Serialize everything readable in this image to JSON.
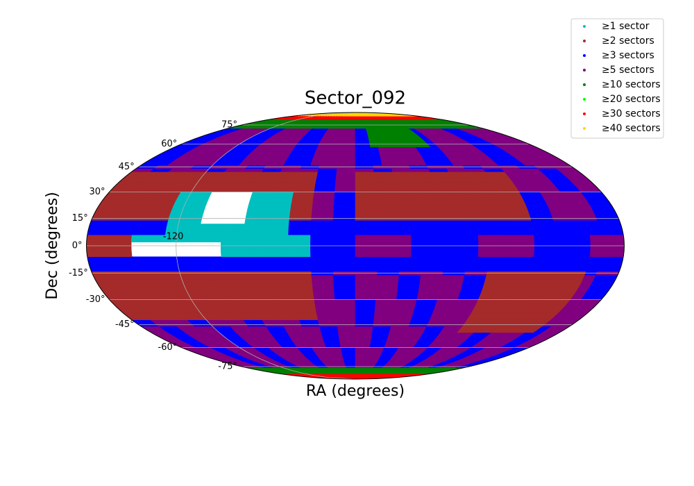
{
  "chart_data": {
    "type": "mollweide",
    "title": "Sector_092",
    "xlabel": "RA (degrees)",
    "ylabel": "Dec (degrees)",
    "xticks": [
      -120
    ],
    "yticks": [
      {
        "value": 75,
        "label": "75°"
      },
      {
        "value": 60,
        "label": "60°"
      },
      {
        "value": 45,
        "label": "45°"
      },
      {
        "value": 30,
        "label": "30°"
      },
      {
        "value": 15,
        "label": "15°"
      },
      {
        "value": 0,
        "label": "0°"
      },
      {
        "value": -15,
        "label": "-15°"
      },
      {
        "value": -30,
        "label": "-30°"
      },
      {
        "value": -45,
        "label": "-45°"
      },
      {
        "value": -60,
        "label": "-60°"
      },
      {
        "value": -75,
        "label": "-75°"
      }
    ],
    "grid": true,
    "legend": "upper right",
    "series": [
      {
        "name": "≥1 sector",
        "color": "#00bfbf"
      },
      {
        "name": "≥2 sectors",
        "color": "#a52a2a"
      },
      {
        "name": "≥3 sectors",
        "color": "#0000ff"
      },
      {
        "name": "≥5 sectors",
        "color": "#800080"
      },
      {
        "name": "≥10 sectors",
        "color": "#008000"
      },
      {
        "name": "≥20 sectors",
        "color": "#00ff00"
      },
      {
        "name": "≥30 sectors",
        "color": "#ff0000"
      },
      {
        "name": "≥40 sectors",
        "color": "#ffd700"
      }
    ]
  }
}
